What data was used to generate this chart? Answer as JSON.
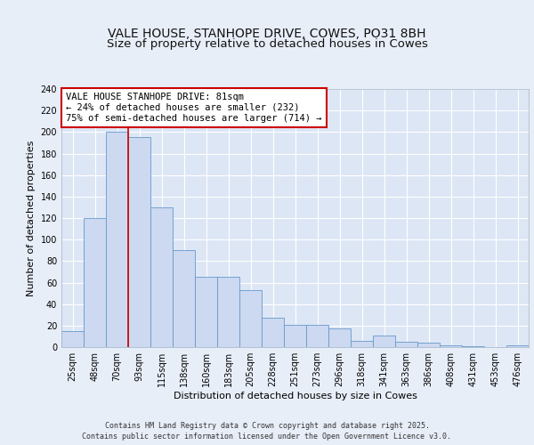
{
  "title1": "VALE HOUSE, STANHOPE DRIVE, COWES, PO31 8BH",
  "title2": "Size of property relative to detached houses in Cowes",
  "xlabel": "Distribution of detached houses by size in Cowes",
  "ylabel": "Number of detached properties",
  "categories": [
    "25sqm",
    "48sqm",
    "70sqm",
    "93sqm",
    "115sqm",
    "138sqm",
    "160sqm",
    "183sqm",
    "205sqm",
    "228sqm",
    "251sqm",
    "273sqm",
    "296sqm",
    "318sqm",
    "341sqm",
    "363sqm",
    "386sqm",
    "408sqm",
    "431sqm",
    "453sqm",
    "476sqm"
  ],
  "bar_values": [
    15,
    120,
    200,
    195,
    130,
    90,
    65,
    65,
    53,
    27,
    21,
    21,
    17,
    6,
    11,
    5,
    4,
    2,
    1,
    0,
    2
  ],
  "bar_color": "#ccd9f0",
  "bar_edge_color": "#6699cc",
  "red_line_x": 2.5,
  "annotation_line1": "VALE HOUSE STANHOPE DRIVE: 81sqm",
  "annotation_line2": "← 24% of detached houses are smaller (232)",
  "annotation_line3": "75% of semi-detached houses are larger (714) →",
  "ylim": [
    0,
    240
  ],
  "yticks": [
    0,
    20,
    40,
    60,
    80,
    100,
    120,
    140,
    160,
    180,
    200,
    220,
    240
  ],
  "bg_color": "#dde6f5",
  "grid_color": "#ffffff",
  "fig_bg_color": "#e8eef8",
  "footer_text": "Contains HM Land Registry data © Crown copyright and database right 2025.\nContains public sector information licensed under the Open Government Licence v3.0.",
  "title_fontsize": 10,
  "axis_label_fontsize": 8,
  "tick_fontsize": 7,
  "annotation_fontsize": 7.5,
  "footer_fontsize": 6
}
